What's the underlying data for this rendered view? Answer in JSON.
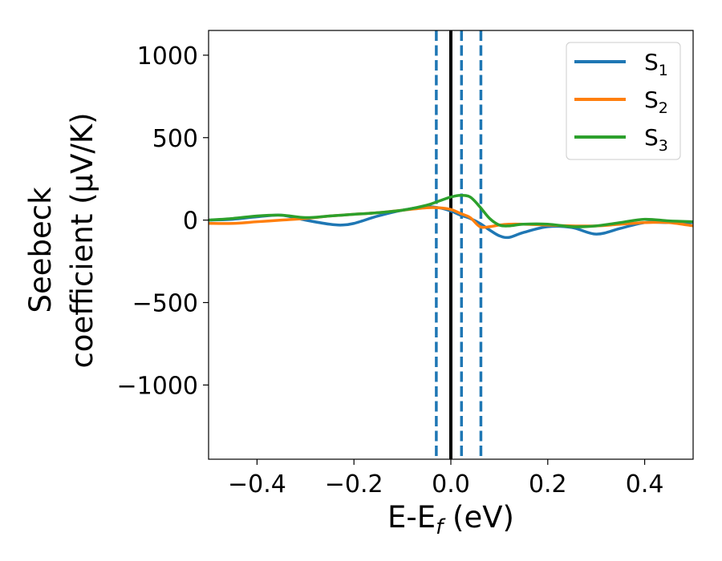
{
  "chart_data": {
    "type": "line",
    "xlabel": {
      "base": "E-E",
      "sub": "f",
      "suffix": " (eV)"
    },
    "ylabel": {
      "line1": "Seebeck",
      "line2": "coefficient  (μV/K)"
    },
    "xlim": [
      -0.5,
      0.5
    ],
    "ylim": [
      -1450,
      1150
    ],
    "x_ticks": [
      -0.4,
      -0.2,
      0.0,
      0.2,
      0.4
    ],
    "x_tick_labels": [
      "−0.4",
      "−0.2",
      "0.0",
      "0.2",
      "0.4"
    ],
    "y_ticks": [
      1000,
      500,
      0,
      -500,
      -1000
    ],
    "y_tick_labels": [
      "1000",
      "500",
      "0",
      "−500",
      "−1000"
    ],
    "grid": false,
    "legend_position": "top-right",
    "x": [
      -0.5,
      -0.45,
      -0.4,
      -0.35,
      -0.3,
      -0.25,
      -0.225,
      -0.2,
      -0.15,
      -0.1,
      -0.05,
      -0.025,
      0.0,
      0.02,
      0.04,
      0.06,
      0.08,
      0.1,
      0.12,
      0.15,
      0.2,
      0.25,
      0.3,
      0.35,
      0.4,
      0.45,
      0.5
    ],
    "series": [
      {
        "name": "S",
        "sub": "1",
        "color": "#1f77b4",
        "values": [
          0,
          5,
          20,
          30,
          0,
          -25,
          -30,
          -20,
          25,
          60,
          80,
          75,
          55,
          30,
          10,
          -20,
          -60,
          -95,
          -105,
          -75,
          -40,
          -45,
          -85,
          -50,
          -15,
          -15,
          -15
        ]
      },
      {
        "name": "S",
        "sub": "2",
        "color": "#ff7f0e",
        "values": [
          -20,
          -20,
          -10,
          0,
          10,
          25,
          30,
          35,
          45,
          60,
          75,
          75,
          65,
          40,
          15,
          -40,
          -40,
          -30,
          -25,
          -25,
          -30,
          -35,
          -35,
          -25,
          -15,
          -15,
          -35
        ]
      },
      {
        "name": "S",
        "sub": "3",
        "color": "#2ca02c",
        "values": [
          0,
          10,
          25,
          30,
          15,
          25,
          30,
          35,
          45,
          60,
          90,
          115,
          140,
          150,
          140,
          80,
          10,
          -30,
          -35,
          -25,
          -25,
          -40,
          -35,
          -15,
          5,
          -5,
          -10
        ]
      }
    ],
    "vertical_lines": [
      {
        "x": 0.0,
        "style": "solid",
        "color": "#000000"
      },
      {
        "x": -0.03,
        "style": "dashed",
        "color": "#1f77b4"
      },
      {
        "x": 0.022,
        "style": "dashed",
        "color": "#1f77b4"
      },
      {
        "x": 0.062,
        "style": "dashed",
        "color": "#1f77b4"
      }
    ]
  }
}
